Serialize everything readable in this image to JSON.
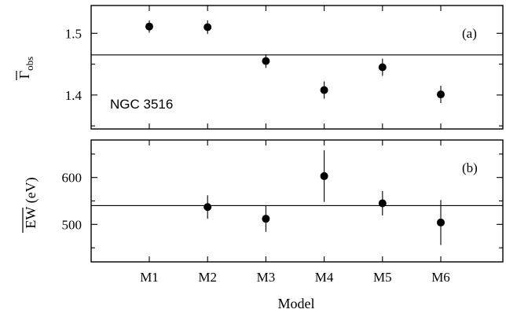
{
  "chart_data": [
    {
      "type": "scatter",
      "panel_label": "(a)",
      "annotation": "NGC 3516",
      "ylabel": {
        "main": "Γ",
        "subscript": "obs",
        "overline": true
      },
      "ylim": [
        1.345,
        1.545
      ],
      "yticks": [
        1.4,
        1.5
      ],
      "yticklabels": [
        "1.4",
        "1.5"
      ],
      "reference_line": 1.465,
      "series": [
        {
          "points": [
            {
              "x": "M1",
              "y": 1.511,
              "err": 0.01
            },
            {
              "x": "M2",
              "y": 1.51,
              "err": 0.011
            },
            {
              "x": "M3",
              "y": 1.455,
              "err": 0.011
            },
            {
              "x": "M4",
              "y": 1.408,
              "err": 0.014
            },
            {
              "x": "M5",
              "y": 1.445,
              "err": 0.014
            },
            {
              "x": "M6",
              "y": 1.401,
              "err": 0.014
            }
          ]
        }
      ],
      "grid": false,
      "legend": "none"
    },
    {
      "type": "scatter",
      "panel_label": "(b)",
      "ylabel": {
        "main": "EW",
        "unit": " (eV)",
        "overline": true
      },
      "ylim": [
        420,
        680
      ],
      "yticks": [
        500,
        600
      ],
      "yticklabels": [
        "500",
        "600"
      ],
      "reference_line": 540,
      "series": [
        {
          "points": [
            {
              "x": "M2",
              "y": 537,
              "err": 25
            },
            {
              "x": "M3",
              "y": 512,
              "err": 28
            },
            {
              "x": "M4",
              "y": 603,
              "err": 55
            },
            {
              "x": "M5",
              "y": 545,
              "err": 26
            },
            {
              "x": "M6",
              "y": 504,
              "err": 48
            }
          ]
        }
      ],
      "grid": false,
      "legend": "none"
    }
  ],
  "shared_x": {
    "categories": [
      "M1",
      "M2",
      "M3",
      "M4",
      "M5",
      "M6"
    ],
    "xlabel": "Model"
  }
}
